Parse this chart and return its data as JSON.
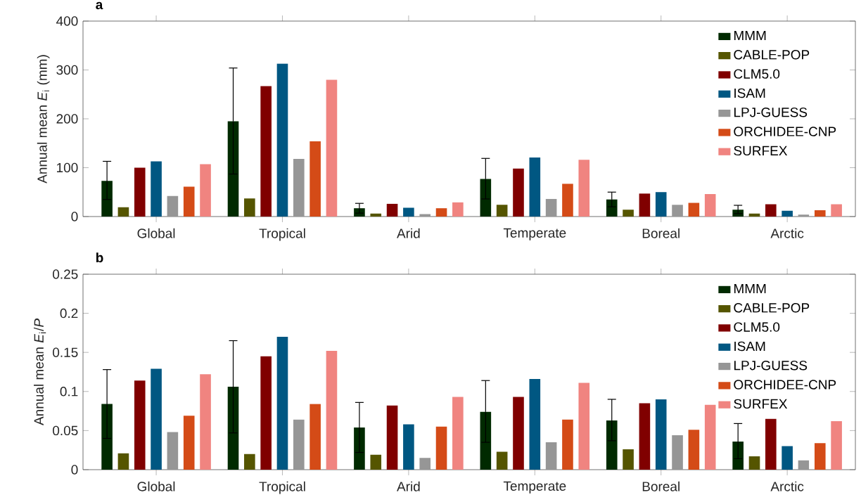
{
  "chart_data": [
    {
      "type": "bar",
      "title": "a",
      "ylabel": "Annual mean *E*$_{i}$ (mm)",
      "categories": [
        "Global",
        "Tropical",
        "Arid",
        "Temperate",
        "Boreal",
        "Arctic"
      ],
      "ylim": [
        0,
        400
      ],
      "yticks": [
        0,
        100,
        200,
        300,
        400
      ],
      "legend": "top right",
      "series": [
        {
          "name": "MMM",
          "color": "#002a00",
          "values": [
            73,
            195,
            17,
            77,
            35,
            14
          ],
          "errors": [
            [
              35,
              113
            ],
            [
              87,
              304
            ],
            [
              7,
              27
            ],
            [
              36,
              119
            ],
            [
              20,
              50
            ],
            [
              6,
              23
            ]
          ]
        },
        {
          "name": "CABLE-POP",
          "color": "#555500",
          "values": [
            19,
            37,
            6,
            24,
            14,
            6
          ]
        },
        {
          "name": "CLM5.0",
          "color": "#800000",
          "values": [
            100,
            267,
            26,
            98,
            47,
            25
          ]
        },
        {
          "name": "ISAM",
          "color": "#005782",
          "values": [
            113,
            313,
            18,
            121,
            50,
            12
          ]
        },
        {
          "name": "LPJ-GUESS",
          "color": "#969696",
          "values": [
            42,
            118,
            5,
            36,
            24,
            4
          ]
        },
        {
          "name": "ORCHIDEE-CNP",
          "color": "#d44b17",
          "values": [
            61,
            154,
            17,
            67,
            28,
            13
          ]
        },
        {
          "name": "SURFEX",
          "color": "#f08480",
          "values": [
            107,
            280,
            29,
            116,
            46,
            25
          ]
        }
      ]
    },
    {
      "type": "bar",
      "title": "b",
      "ylabel": "Annual mean *E*$_{i}$/*P*",
      "categories": [
        "Global",
        "Tropical",
        "Arid",
        "Temperate",
        "Boreal",
        "Arctic"
      ],
      "ylim": [
        0,
        0.25
      ],
      "yticks": [
        0,
        0.05,
        0.1,
        0.15,
        0.2,
        0.25
      ],
      "legend": "top right",
      "series": [
        {
          "name": "MMM",
          "color": "#002a00",
          "values": [
            0.084,
            0.106,
            0.054,
            0.074,
            0.063,
            0.036
          ],
          "errors": [
            [
              0.04,
              0.128
            ],
            [
              0.047,
              0.165
            ],
            [
              0.022,
              0.086
            ],
            [
              0.035,
              0.114
            ],
            [
              0.037,
              0.09
            ],
            [
              0.014,
              0.059
            ]
          ]
        },
        {
          "name": "CABLE-POP",
          "color": "#555500",
          "values": [
            0.021,
            0.02,
            0.019,
            0.023,
            0.026,
            0.017
          ]
        },
        {
          "name": "CLM5.0",
          "color": "#800000",
          "values": [
            0.114,
            0.145,
            0.082,
            0.093,
            0.085,
            0.065
          ]
        },
        {
          "name": "ISAM",
          "color": "#005782",
          "values": [
            0.129,
            0.17,
            0.058,
            0.116,
            0.09,
            0.03
          ]
        },
        {
          "name": "LPJ-GUESS",
          "color": "#969696",
          "values": [
            0.048,
            0.064,
            0.015,
            0.035,
            0.044,
            0.012
          ]
        },
        {
          "name": "ORCHIDEE-CNP",
          "color": "#d44b17",
          "values": [
            0.069,
            0.084,
            0.055,
            0.064,
            0.051,
            0.034
          ]
        },
        {
          "name": "SURFEX",
          "color": "#f08480",
          "values": [
            0.122,
            0.152,
            0.093,
            0.111,
            0.083,
            0.062
          ]
        }
      ]
    }
  ]
}
